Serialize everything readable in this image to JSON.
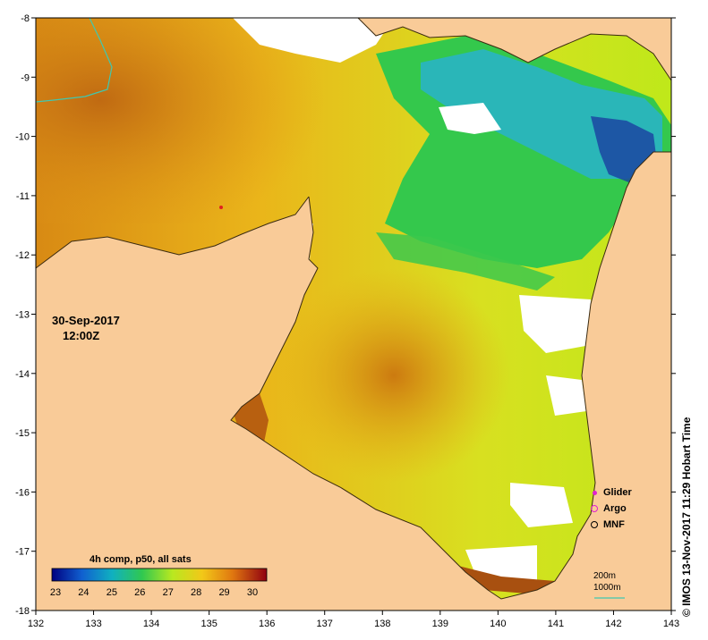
{
  "map": {
    "date": "30-Sep-2017",
    "time": "12:00Z",
    "x_ticks": [
      "132",
      "133",
      "134",
      "135",
      "136",
      "137",
      "138",
      "139",
      "140",
      "141",
      "142",
      "143"
    ],
    "y_ticks": [
      "-8",
      "-9",
      "-10",
      "-11",
      "-12",
      "-13",
      "-14",
      "-15",
      "-16",
      "-17",
      "-18"
    ],
    "colorbar": {
      "title": "4h comp, p50, all sats",
      "labels": [
        "23",
        "24",
        "25",
        "26",
        "27",
        "28",
        "29",
        "30"
      ]
    },
    "legend": {
      "glider": "Glider",
      "argo": "Argo",
      "mnf": "MNF"
    },
    "depth_labels": {
      "d200": "200m",
      "d1000": "1000m"
    },
    "credit": "© IMOS 13-Nov-2017 11:29 Hobart Time",
    "colors": {
      "land": "#f9cb98",
      "no_data": "#ffffff",
      "warm": "#d98a10",
      "mid": "#f2c518",
      "cool": "#bfe81a",
      "green": "#2fc84a",
      "cyan": "#29b6c4",
      "blue": "#1030a0"
    }
  }
}
